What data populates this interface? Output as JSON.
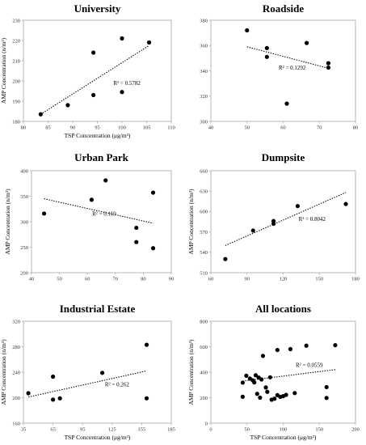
{
  "chart_data": [
    {
      "type": "scatter",
      "title": "University",
      "xlabel": "TSP Concentration (μg/m³)",
      "ylabel": "AMP Concentration (n/m³)",
      "xlim": [
        80,
        110
      ],
      "xticks": [
        80,
        85,
        90,
        95,
        100,
        105,
        110
      ],
      "ylim": [
        180,
        230
      ],
      "yticks": [
        180,
        190,
        200,
        210,
        220,
        230
      ],
      "points": [
        [
          83.5,
          183.5
        ],
        [
          89,
          188
        ],
        [
          94.2,
          193
        ],
        [
          94.2,
          214
        ],
        [
          100,
          221
        ],
        [
          100,
          194.5
        ],
        [
          105.5,
          219
        ]
      ],
      "trendline": {
        "x": [
          83.5,
          105.5
        ],
        "y": [
          183.5,
          217.5
        ]
      },
      "r2": "R² = 0.5782",
      "r2_pos": [
        101,
        198
      ]
    },
    {
      "type": "scatter",
      "title": "Roadside",
      "xlabel": "",
      "ylabel": "",
      "xlim": [
        40,
        80
      ],
      "xticks": [
        40,
        50,
        60,
        70,
        80
      ],
      "ylim": [
        300,
        380
      ],
      "yticks": [
        300,
        320,
        340,
        360,
        380
      ],
      "points": [
        [
          50,
          372
        ],
        [
          55.5,
          358
        ],
        [
          55.5,
          351
        ],
        [
          61,
          314
        ],
        [
          66.5,
          362
        ],
        [
          72.5,
          346
        ],
        [
          72.5,
          342.5
        ]
      ],
      "trendline": {
        "x": [
          50,
          72.5
        ],
        "y": [
          359,
          342
        ]
      },
      "r2": "R² = 0.1292",
      "r2_pos": [
        62.5,
        341
      ]
    },
    {
      "type": "scatter",
      "title": "Urban Park",
      "xlabel": "",
      "ylabel": "AMP Concentration (n/m³)",
      "xlim": [
        40,
        90
      ],
      "xticks": [
        40,
        50,
        60,
        70,
        80,
        90
      ],
      "ylim": [
        200,
        400
      ],
      "yticks": [
        200,
        250,
        300,
        350,
        400
      ],
      "points": [
        [
          44.5,
          316
        ],
        [
          61.5,
          343
        ],
        [
          66.5,
          381
        ],
        [
          77.5,
          288
        ],
        [
          77.5,
          260
        ],
        [
          83.5,
          357
        ],
        [
          83.5,
          248
        ]
      ],
      "trendline": {
        "x": [
          44.5,
          83.5
        ],
        "y": [
          345,
          297
        ]
      },
      "r2": "R² = 0.119",
      "r2_pos": [
        66,
        312
      ]
    },
    {
      "type": "scatter",
      "title": "Dumpsite",
      "xlabel": "",
      "ylabel": "AMP Concentration (n/m³)",
      "xlim": [
        60,
        180
      ],
      "xticks": [
        60,
        90,
        120,
        150,
        180
      ],
      "ylim": [
        510,
        660
      ],
      "yticks": [
        510,
        540,
        570,
        600,
        630,
        660
      ],
      "points": [
        [
          72,
          530
        ],
        [
          95,
          572
        ],
        [
          112,
          586
        ],
        [
          112,
          582
        ],
        [
          132,
          608
        ],
        [
          172,
          611
        ]
      ],
      "trendline": {
        "x": [
          72,
          172
        ],
        "y": [
          550,
          628
        ]
      },
      "r2": "R² = 0.8042",
      "r2_pos": [
        144,
        586
      ]
    },
    {
      "type": "scatter",
      "title": "Industrial Estate",
      "xlabel": "TSP Concentration (μg/m³)",
      "ylabel": "AMP Concentration (n/m³)",
      "xlim": [
        35,
        185
      ],
      "xticks": [
        35,
        65,
        95,
        125,
        155,
        185
      ],
      "ylim": [
        160,
        320
      ],
      "yticks": [
        160,
        200,
        240,
        280,
        320
      ],
      "points": [
        [
          40,
          207
        ],
        [
          65,
          233
        ],
        [
          65,
          197
        ],
        [
          72,
          199
        ],
        [
          115,
          239
        ],
        [
          160,
          283
        ],
        [
          160,
          199
        ]
      ],
      "trendline": {
        "x": [
          40,
          160
        ],
        "y": [
          201,
          242
        ]
      },
      "r2": "R² = 0.262",
      "r2_pos": [
        130,
        218
      ]
    },
    {
      "type": "scatter",
      "title": "All locations",
      "xlabel": "TSP Concentration (μg/m³)",
      "ylabel": "AMP Concentration (n/m³)",
      "xlim": [
        0,
        200
      ],
      "xticks": [
        0,
        50,
        100,
        150,
        200
      ],
      "ylim": [
        0,
        800
      ],
      "yticks": [
        0,
        200,
        400,
        600,
        800
      ],
      "points": [
        [
          44,
          318
        ],
        [
          49,
          372
        ],
        [
          54,
          350
        ],
        [
          58,
          336
        ],
        [
          62,
          376
        ],
        [
          66,
          358
        ],
        [
          70,
          343
        ],
        [
          72,
          528
        ],
        [
          76,
          280
        ],
        [
          78,
          246
        ],
        [
          82,
          360
        ],
        [
          84,
          184
        ],
        [
          88,
          192
        ],
        [
          92,
          220
        ],
        [
          92,
          574
        ],
        [
          96,
          206
        ],
        [
          100,
          212
        ],
        [
          104,
          222
        ],
        [
          110,
          581
        ],
        [
          116,
          236
        ],
        [
          132,
          608
        ],
        [
          160,
          283
        ],
        [
          160,
          198
        ],
        [
          172,
          612
        ],
        [
          64,
          230
        ],
        [
          68,
          200
        ],
        [
          44,
          207
        ],
        [
          60,
          320
        ]
      ],
      "trendline": {
        "x": [
          44,
          172
        ],
        "y": [
          330,
          420
        ]
      },
      "r2": "R² = 0.0559",
      "r2_pos": [
        136,
        440
      ]
    }
  ]
}
